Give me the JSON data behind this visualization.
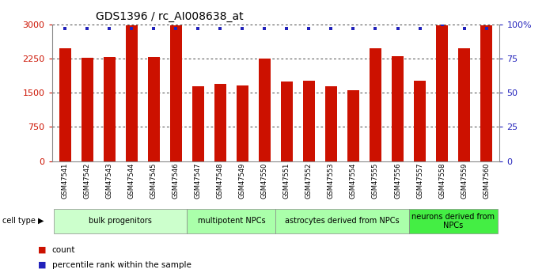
{
  "title": "GDS1396 / rc_AI008638_at",
  "samples": [
    "GSM47541",
    "GSM47542",
    "GSM47543",
    "GSM47544",
    "GSM47545",
    "GSM47546",
    "GSM47547",
    "GSM47548",
    "GSM47549",
    "GSM47550",
    "GSM47551",
    "GSM47552",
    "GSM47553",
    "GSM47554",
    "GSM47555",
    "GSM47556",
    "GSM47557",
    "GSM47558",
    "GSM47559",
    "GSM47560"
  ],
  "counts": [
    2480,
    2270,
    2290,
    2980,
    2290,
    2980,
    1650,
    1700,
    1660,
    2250,
    1750,
    1760,
    1650,
    1550,
    2480,
    2310,
    1760,
    2980,
    2480,
    2980
  ],
  "percentile": [
    97,
    97,
    97,
    97,
    97,
    97,
    97,
    97,
    97,
    97,
    97,
    97,
    97,
    97,
    97,
    97,
    97,
    100,
    97,
    97
  ],
  "bar_color": "#cc1100",
  "dot_color": "#2222bb",
  "ylim_left": [
    0,
    3000
  ],
  "ylim_right": [
    0,
    100
  ],
  "yticks_left": [
    0,
    750,
    1500,
    2250,
    3000
  ],
  "yticks_right": [
    0,
    25,
    50,
    75,
    100
  ],
  "ytick_labels_right": [
    "0",
    "25",
    "50",
    "75",
    "100%"
  ],
  "cell_groups": [
    {
      "label": "bulk progenitors",
      "start": 0,
      "end": 5,
      "color": "#ccffcc"
    },
    {
      "label": "multipotent NPCs",
      "start": 6,
      "end": 9,
      "color": "#aaffaa"
    },
    {
      "label": "astrocytes derived from NPCs",
      "start": 10,
      "end": 15,
      "color": "#aaffaa"
    },
    {
      "label": "neurons derived from\nNPCs",
      "start": 16,
      "end": 19,
      "color": "#44ee44"
    }
  ],
  "legend_count_label": "count",
  "legend_pct_label": "percentile rank within the sample",
  "cell_type_label": "cell type",
  "title_fontsize": 10,
  "tick_fontsize": 8,
  "sample_fontsize": 6,
  "group_fontsize": 7,
  "legend_fontsize": 7.5
}
